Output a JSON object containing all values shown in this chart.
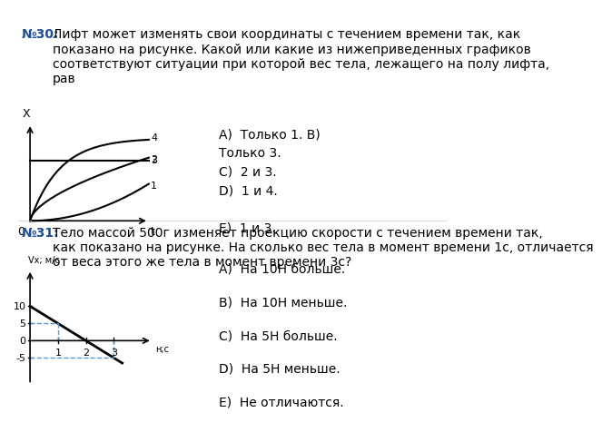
{
  "title_num30": "№30:",
  "text30": "Лифт может изменять свои координаты с течением времени так, как\nпоказано на рисунке. Какой или какие из нижеприведенных графиков\nсоответствуют ситуации при которой вес тела, лежащего на полу лифта,\nрав",
  "answers30": [
    "A)  Только 1. B)\nТолько 3.",
    "C)  2 и 3.",
    "D)  1 и 4.",
    "",
    "E)  1 и 3."
  ],
  "title_num31": "№31:",
  "text31": "Тело массой 500г изменяет проекцию скорости с течением времени так,\nкак показано на рисунке. На сколько вес тела в момент времени 1с, отличается\nот веса этого же тела в момент времени 3с?",
  "answers31": [
    "A)  На 10Н больше.",
    "",
    "B)  На 10Н меньше.",
    "",
    "C)  На 5Н больше.",
    "",
    "D)  На 5Н меньше.",
    "",
    "E)  Не отличаются."
  ],
  "bg_color": "#ffffff",
  "border_color": "#5b9bd5",
  "text_color": "#000000",
  "num_color": "#1f4e99"
}
